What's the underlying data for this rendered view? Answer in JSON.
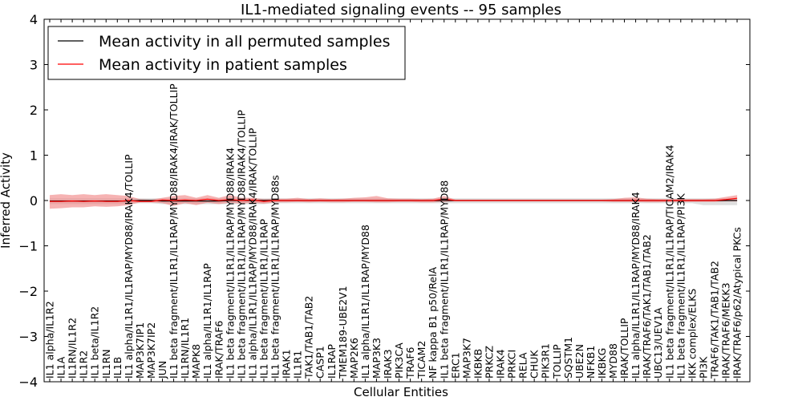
{
  "chart_data": {
    "type": "line",
    "title": "IL1-mediated signaling events -- 95 samples",
    "xlabel": "Cellular Entities",
    "ylabel": "Inferred Activity",
    "ylim": [
      -4,
      4
    ],
    "yticks": [
      -4,
      -3,
      -2,
      -1,
      0,
      1,
      2,
      3,
      4
    ],
    "legend_position": "top-left",
    "colors": {
      "permuted": "#000000",
      "patient": "#ff0000",
      "patient_band": "#f08080",
      "permuted_band": "#c8c8c8"
    },
    "categories": [
      "IL1 alpha/IL1R2",
      "IL1A",
      "IL1RN/IL1R2",
      "IL1R2",
      "IL1 beta/IL1R2",
      "IL1RN",
      "IL1B",
      "IL1 alpha/IL1R1/IL1RAP/MYD88/IRAK4/TOLLIP",
      "MAP3K7IP1",
      "MAP3K7IP2",
      "JUN",
      "IL1 beta fragment/IL1R1/IL1RAP/MYD88/IRAK4/IRAK/TOLLIP",
      "IL1RN/IL1R1",
      "MAPK8",
      "IL1 alpha/IL1R1/IL1RAP",
      "IRAK/TRAF6",
      "IL1 beta fragment/IL1R1/IL1RAP/MYD88/IRAK4",
      "IL1 beta fragment/IL1R1/IL1RAP/MYD88/IRAK4/TOLLIP",
      "IL1 alpha/IL1R1/IL1RAP/MYD88/IRAK4/IRAK/TOLLIP",
      "IL1 beta fragment/IL1R1/IL1RAP",
      "IL1 beta fragment/IL1R1/IL1RAP/MYD88s",
      "IRAK1",
      "IL1R1",
      "TAK1/TAB1/TAB2",
      "CASP1",
      "IL1RAP",
      "TMEM189-UBE2V1",
      "MAP2K6",
      "IL1 alpha/IL1R1/IL1RAP/MYD88",
      "MAP3K3",
      "IRAK3",
      "PIK3CA",
      "TRAF6",
      "TICAM2",
      "NF kappa B1 p50/RelA",
      "IL1 beta fragment/IL1R1/IL1RAP/MYD88",
      "ERC1",
      "MAP3K7",
      "IKBKB",
      "PRKCZ",
      "IRAK4",
      "PRKCI",
      "RELA",
      "CHUK",
      "PIK3R1",
      "TOLLIP",
      "SQSTM1",
      "UBE2N",
      "NFKB1",
      "IKBKG",
      "MYD88",
      "IRAK/TOLLIP",
      "IL1 alpha/IL1R1/IL1RAP/MYD88/IRAK4",
      "IRAK/TRAF6/TAK1/TAB1/TAB2",
      "UBC13/UEV1A",
      "IL1 beta fragment/IL1R1/IL1RAP/TICAM2/IRAK4",
      "IL1 beta fragment/IL1R1/IL1RAP/PI3K",
      "IKK complex/ELKS",
      "PI3K",
      "TRAF6/TAK1/TAB1/TAB2",
      "IRAK/TRAF6/MEKK3",
      "IRAK/TRAF6/p62/Atypical PKCs"
    ],
    "series": [
      {
        "name": "Mean activity in all permuted samples",
        "color": "#000000",
        "values": [
          -0.01,
          -0.01,
          -0.01,
          -0.01,
          -0.01,
          -0.01,
          -0.01,
          -0.01,
          0,
          0,
          -0.01,
          -0.01,
          -0.01,
          -0.01,
          -0.01,
          -0.01,
          0,
          0,
          0,
          0,
          0,
          0,
          0,
          0,
          0,
          0,
          0,
          0,
          0,
          0,
          0,
          0,
          0,
          0,
          0,
          0,
          0,
          0,
          0,
          0,
          0,
          0,
          0,
          0,
          0,
          0,
          0,
          0,
          0,
          0,
          0,
          0,
          0,
          0,
          0,
          0,
          0,
          0,
          0,
          0,
          0,
          0
        ]
      },
      {
        "name": "Mean activity in patient samples",
        "color": "#ff0000",
        "values": [
          -0.02,
          -0.02,
          -0.01,
          -0.02,
          -0.01,
          -0.02,
          -0.02,
          0,
          -0.02,
          -0.02,
          0.01,
          0,
          0.01,
          0,
          0.03,
          0,
          0.02,
          0,
          0.01,
          -0.02,
          0,
          0,
          0,
          0,
          0,
          0,
          0,
          0,
          0,
          0,
          0,
          0,
          0,
          0,
          0,
          0.03,
          0,
          0,
          0,
          0,
          0,
          0,
          0,
          0,
          0,
          0,
          0,
          0,
          0,
          0,
          0,
          0,
          0,
          0,
          0,
          0,
          0,
          0,
          0,
          0,
          0.02,
          0.05
        ]
      }
    ],
    "patient_band": {
      "upper": [
        0.12,
        0.14,
        0.12,
        0.14,
        0.12,
        0.14,
        0.12,
        0.1,
        0.03,
        0.02,
        0.06,
        0.1,
        0.12,
        0.06,
        0.12,
        0.06,
        0.12,
        0.06,
        0.06,
        0.03,
        0.04,
        0.04,
        0.06,
        0.03,
        0.05,
        0.03,
        0.04,
        0.06,
        0.07,
        0.1,
        0.05,
        0.04,
        0.04,
        0.03,
        0.04,
        0.1,
        0.02,
        0.02,
        0.02,
        0.02,
        0.02,
        0.02,
        0.02,
        0.02,
        0.02,
        0.02,
        0.02,
        0.02,
        0.02,
        0.02,
        0.03,
        0.06,
        0.07,
        0.04,
        0.03,
        0.03,
        0.03,
        0.03,
        0.03,
        0.04,
        0.08,
        0.12
      ],
      "lower": [
        -0.18,
        -0.17,
        -0.15,
        -0.15,
        -0.13,
        -0.14,
        -0.13,
        -0.1,
        -0.04,
        -0.04,
        -0.06,
        -0.12,
        -0.06,
        -0.1,
        -0.05,
        -0.08,
        -0.05,
        -0.07,
        -0.05,
        -0.07,
        -0.04,
        -0.04,
        -0.03,
        -0.04,
        -0.03,
        -0.04,
        -0.04,
        -0.03,
        -0.03,
        -0.04,
        -0.04,
        -0.03,
        -0.03,
        -0.04,
        -0.04,
        -0.03,
        -0.02,
        -0.02,
        -0.02,
        -0.02,
        -0.02,
        -0.02,
        -0.02,
        -0.02,
        -0.02,
        -0.02,
        -0.02,
        -0.02,
        -0.02,
        -0.02,
        -0.03,
        -0.03,
        -0.03,
        -0.04,
        -0.04,
        -0.03,
        -0.03,
        -0.03,
        -0.03,
        -0.03,
        -0.02,
        -0.02
      ]
    },
    "permuted_band": {
      "upper": [
        0.05,
        0.05,
        0.05,
        0.05,
        0.05,
        0.05,
        0.05,
        0.05,
        0.05,
        0.05,
        0.05,
        0.05,
        0.05,
        0.05,
        0.05,
        0.05,
        0.05,
        0.05,
        0.05,
        0.05,
        0.05,
        0.05,
        0.05,
        0.05,
        0.05,
        0.05,
        0.05,
        0.05,
        0.05,
        0.05,
        0.05,
        0.05,
        0.05,
        0.05,
        0.05,
        0.05,
        0.05,
        0.05,
        0.05,
        0.05,
        0.05,
        0.05,
        0.05,
        0.05,
        0.05,
        0.05,
        0.05,
        0.05,
        0.05,
        0.05,
        0.05,
        0.05,
        0.05,
        0.05,
        0.05,
        0.05,
        0.05,
        0.05,
        0.05,
        0.05,
        0.05,
        0.05
      ],
      "lower": [
        -0.08,
        -0.08,
        -0.08,
        -0.08,
        -0.08,
        -0.08,
        -0.08,
        -0.08,
        -0.06,
        -0.06,
        -0.08,
        -0.08,
        -0.08,
        -0.08,
        -0.08,
        -0.08,
        -0.08,
        -0.08,
        -0.08,
        -0.08,
        -0.06,
        -0.06,
        -0.06,
        -0.06,
        -0.06,
        -0.06,
        -0.06,
        -0.06,
        -0.06,
        -0.06,
        -0.06,
        -0.06,
        -0.06,
        -0.06,
        -0.06,
        -0.06,
        -0.06,
        -0.06,
        -0.06,
        -0.06,
        -0.06,
        -0.06,
        -0.06,
        -0.06,
        -0.06,
        -0.06,
        -0.06,
        -0.06,
        -0.06,
        -0.06,
        -0.06,
        -0.06,
        -0.06,
        -0.06,
        -0.06,
        -0.06,
        -0.06,
        -0.06,
        -0.1,
        -0.1,
        -0.1,
        -0.1
      ]
    }
  }
}
